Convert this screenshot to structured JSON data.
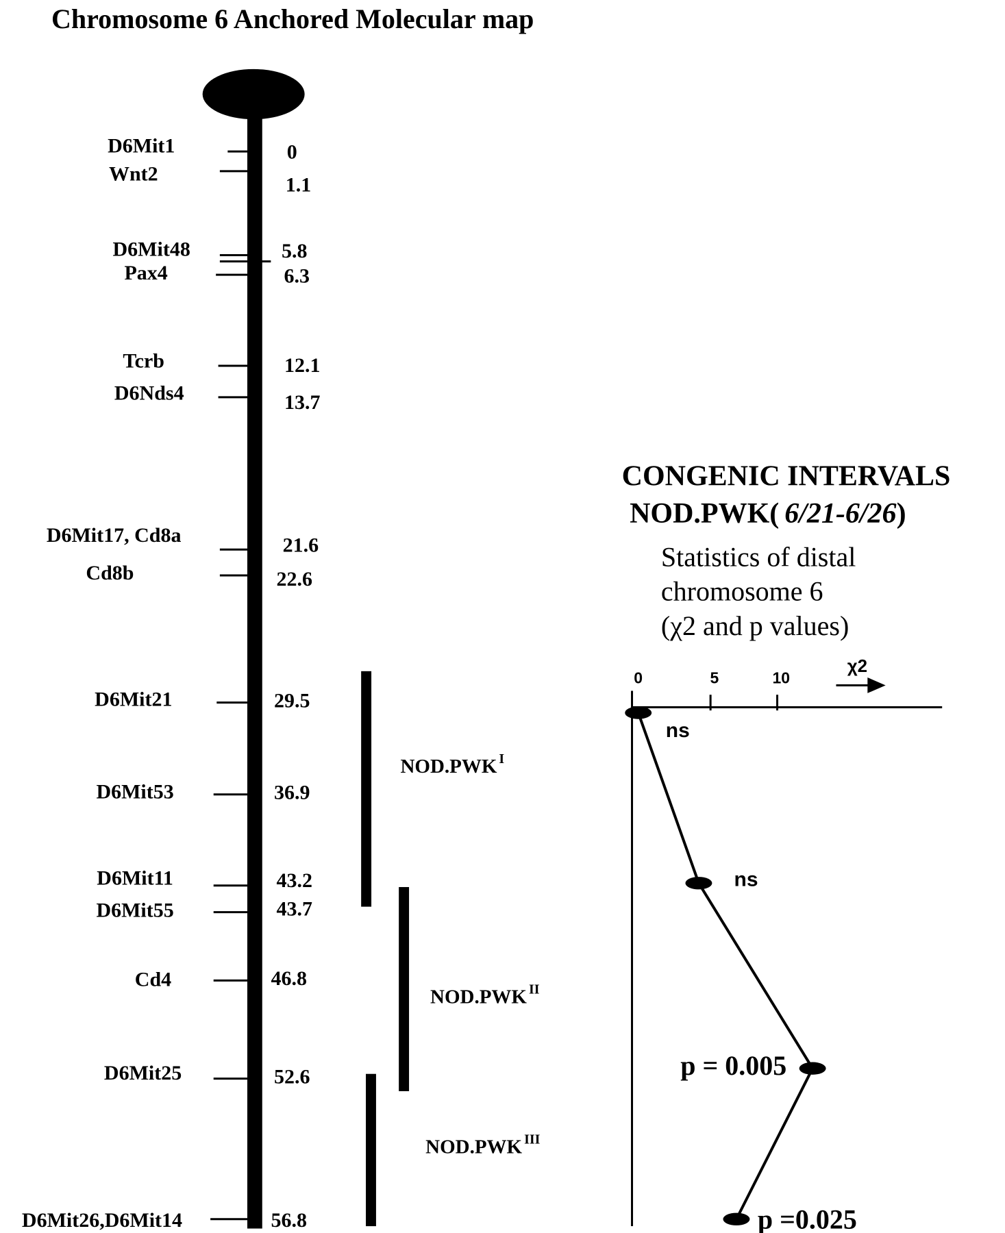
{
  "title": "Chromosome 6 Anchored Molecular map",
  "markers": [
    {
      "name": "D6Mit1",
      "position": "0"
    },
    {
      "name": "Wnt2",
      "position": "1.1"
    },
    {
      "name": "D6Mit48",
      "position": "5.8"
    },
    {
      "name": "Pax4",
      "position": "6.3"
    },
    {
      "name": "Tcrb",
      "position": "12.1"
    },
    {
      "name": "D6Nds4",
      "position": "13.7"
    },
    {
      "name": "D6Mit17, Cd8a",
      "position": "21.6"
    },
    {
      "name": "Cd8b",
      "position": "22.6"
    },
    {
      "name": "D6Mit21",
      "position": "29.5"
    },
    {
      "name": "D6Mit53",
      "position": "36.9"
    },
    {
      "name": "D6Mit11",
      "position": "43.2"
    },
    {
      "name": "D6Mit55",
      "position": "43.7"
    },
    {
      "name": "Cd4",
      "position": "46.8"
    },
    {
      "name": "D6Mit25",
      "position": "52.6"
    },
    {
      "name": "D6Mit26,D6Mit14",
      "position": "56.8"
    }
  ],
  "congenic_intervals": [
    {
      "label": "NOD.PWK",
      "superscript": "I"
    },
    {
      "label": "NOD.PWK",
      "superscript": "II"
    },
    {
      "label": "NOD.PWK",
      "superscript": "III"
    }
  ],
  "panel": {
    "title": "CONGENIC INTERVALS",
    "strain": "NOD.PWK(",
    "strain_range": "6/21-6/26",
    "strain_close": ")",
    "subtitle": [
      "Statistics of distal",
      "chromosome 6",
      "(χ2 and p values)"
    ],
    "axis_ticks": [
      "0",
      "5",
      "10"
    ],
    "axis_label": "χ2",
    "point_labels": [
      "ns",
      "ns",
      "p = 0.005",
      "p =0.025"
    ]
  }
}
